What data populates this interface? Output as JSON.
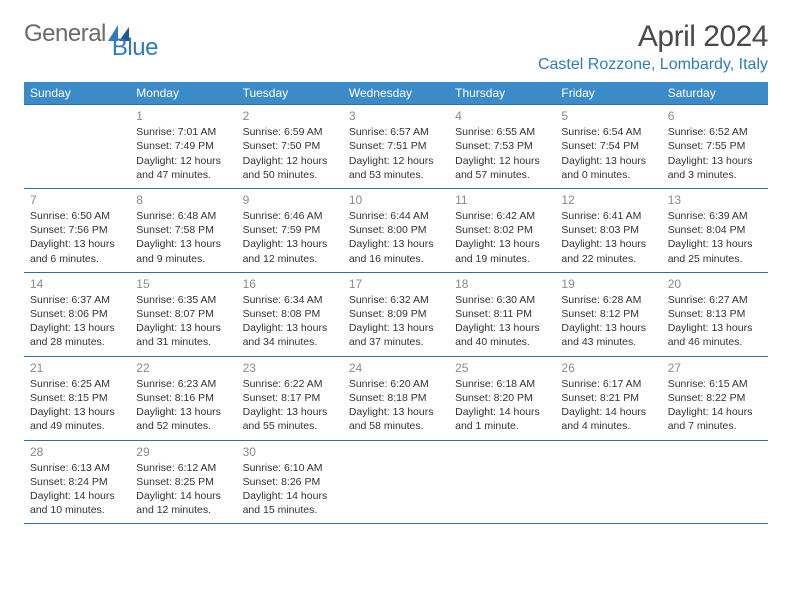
{
  "logo": {
    "part1": "General",
    "part2": "Blue"
  },
  "title": "April 2024",
  "location": "Castel Rozzone, Lombardy, Italy",
  "day_headers": [
    "Sunday",
    "Monday",
    "Tuesday",
    "Wednesday",
    "Thursday",
    "Friday",
    "Saturday"
  ],
  "colors": {
    "header_bg": "#3b8bc9",
    "header_text": "#ffffff",
    "border": "#2f6fa3",
    "accent": "#2f7bbf",
    "logo_gray": "#6a6a6a",
    "body_text": "#333333",
    "daynum": "#8a8a8a"
  },
  "weeks": [
    [
      null,
      {
        "n": "1",
        "sr": "Sunrise: 7:01 AM",
        "ss": "Sunset: 7:49 PM",
        "d1": "Daylight: 12 hours",
        "d2": "and 47 minutes."
      },
      {
        "n": "2",
        "sr": "Sunrise: 6:59 AM",
        "ss": "Sunset: 7:50 PM",
        "d1": "Daylight: 12 hours",
        "d2": "and 50 minutes."
      },
      {
        "n": "3",
        "sr": "Sunrise: 6:57 AM",
        "ss": "Sunset: 7:51 PM",
        "d1": "Daylight: 12 hours",
        "d2": "and 53 minutes."
      },
      {
        "n": "4",
        "sr": "Sunrise: 6:55 AM",
        "ss": "Sunset: 7:53 PM",
        "d1": "Daylight: 12 hours",
        "d2": "and 57 minutes."
      },
      {
        "n": "5",
        "sr": "Sunrise: 6:54 AM",
        "ss": "Sunset: 7:54 PM",
        "d1": "Daylight: 13 hours",
        "d2": "and 0 minutes."
      },
      {
        "n": "6",
        "sr": "Sunrise: 6:52 AM",
        "ss": "Sunset: 7:55 PM",
        "d1": "Daylight: 13 hours",
        "d2": "and 3 minutes."
      }
    ],
    [
      {
        "n": "7",
        "sr": "Sunrise: 6:50 AM",
        "ss": "Sunset: 7:56 PM",
        "d1": "Daylight: 13 hours",
        "d2": "and 6 minutes."
      },
      {
        "n": "8",
        "sr": "Sunrise: 6:48 AM",
        "ss": "Sunset: 7:58 PM",
        "d1": "Daylight: 13 hours",
        "d2": "and 9 minutes."
      },
      {
        "n": "9",
        "sr": "Sunrise: 6:46 AM",
        "ss": "Sunset: 7:59 PM",
        "d1": "Daylight: 13 hours",
        "d2": "and 12 minutes."
      },
      {
        "n": "10",
        "sr": "Sunrise: 6:44 AM",
        "ss": "Sunset: 8:00 PM",
        "d1": "Daylight: 13 hours",
        "d2": "and 16 minutes."
      },
      {
        "n": "11",
        "sr": "Sunrise: 6:42 AM",
        "ss": "Sunset: 8:02 PM",
        "d1": "Daylight: 13 hours",
        "d2": "and 19 minutes."
      },
      {
        "n": "12",
        "sr": "Sunrise: 6:41 AM",
        "ss": "Sunset: 8:03 PM",
        "d1": "Daylight: 13 hours",
        "d2": "and 22 minutes."
      },
      {
        "n": "13",
        "sr": "Sunrise: 6:39 AM",
        "ss": "Sunset: 8:04 PM",
        "d1": "Daylight: 13 hours",
        "d2": "and 25 minutes."
      }
    ],
    [
      {
        "n": "14",
        "sr": "Sunrise: 6:37 AM",
        "ss": "Sunset: 8:06 PM",
        "d1": "Daylight: 13 hours",
        "d2": "and 28 minutes."
      },
      {
        "n": "15",
        "sr": "Sunrise: 6:35 AM",
        "ss": "Sunset: 8:07 PM",
        "d1": "Daylight: 13 hours",
        "d2": "and 31 minutes."
      },
      {
        "n": "16",
        "sr": "Sunrise: 6:34 AM",
        "ss": "Sunset: 8:08 PM",
        "d1": "Daylight: 13 hours",
        "d2": "and 34 minutes."
      },
      {
        "n": "17",
        "sr": "Sunrise: 6:32 AM",
        "ss": "Sunset: 8:09 PM",
        "d1": "Daylight: 13 hours",
        "d2": "and 37 minutes."
      },
      {
        "n": "18",
        "sr": "Sunrise: 6:30 AM",
        "ss": "Sunset: 8:11 PM",
        "d1": "Daylight: 13 hours",
        "d2": "and 40 minutes."
      },
      {
        "n": "19",
        "sr": "Sunrise: 6:28 AM",
        "ss": "Sunset: 8:12 PM",
        "d1": "Daylight: 13 hours",
        "d2": "and 43 minutes."
      },
      {
        "n": "20",
        "sr": "Sunrise: 6:27 AM",
        "ss": "Sunset: 8:13 PM",
        "d1": "Daylight: 13 hours",
        "d2": "and 46 minutes."
      }
    ],
    [
      {
        "n": "21",
        "sr": "Sunrise: 6:25 AM",
        "ss": "Sunset: 8:15 PM",
        "d1": "Daylight: 13 hours",
        "d2": "and 49 minutes."
      },
      {
        "n": "22",
        "sr": "Sunrise: 6:23 AM",
        "ss": "Sunset: 8:16 PM",
        "d1": "Daylight: 13 hours",
        "d2": "and 52 minutes."
      },
      {
        "n": "23",
        "sr": "Sunrise: 6:22 AM",
        "ss": "Sunset: 8:17 PM",
        "d1": "Daylight: 13 hours",
        "d2": "and 55 minutes."
      },
      {
        "n": "24",
        "sr": "Sunrise: 6:20 AM",
        "ss": "Sunset: 8:18 PM",
        "d1": "Daylight: 13 hours",
        "d2": "and 58 minutes."
      },
      {
        "n": "25",
        "sr": "Sunrise: 6:18 AM",
        "ss": "Sunset: 8:20 PM",
        "d1": "Daylight: 14 hours",
        "d2": "and 1 minute."
      },
      {
        "n": "26",
        "sr": "Sunrise: 6:17 AM",
        "ss": "Sunset: 8:21 PM",
        "d1": "Daylight: 14 hours",
        "d2": "and 4 minutes."
      },
      {
        "n": "27",
        "sr": "Sunrise: 6:15 AM",
        "ss": "Sunset: 8:22 PM",
        "d1": "Daylight: 14 hours",
        "d2": "and 7 minutes."
      }
    ],
    [
      {
        "n": "28",
        "sr": "Sunrise: 6:13 AM",
        "ss": "Sunset: 8:24 PM",
        "d1": "Daylight: 14 hours",
        "d2": "and 10 minutes."
      },
      {
        "n": "29",
        "sr": "Sunrise: 6:12 AM",
        "ss": "Sunset: 8:25 PM",
        "d1": "Daylight: 14 hours",
        "d2": "and 12 minutes."
      },
      {
        "n": "30",
        "sr": "Sunrise: 6:10 AM",
        "ss": "Sunset: 8:26 PM",
        "d1": "Daylight: 14 hours",
        "d2": "and 15 minutes."
      },
      null,
      null,
      null,
      null
    ]
  ]
}
